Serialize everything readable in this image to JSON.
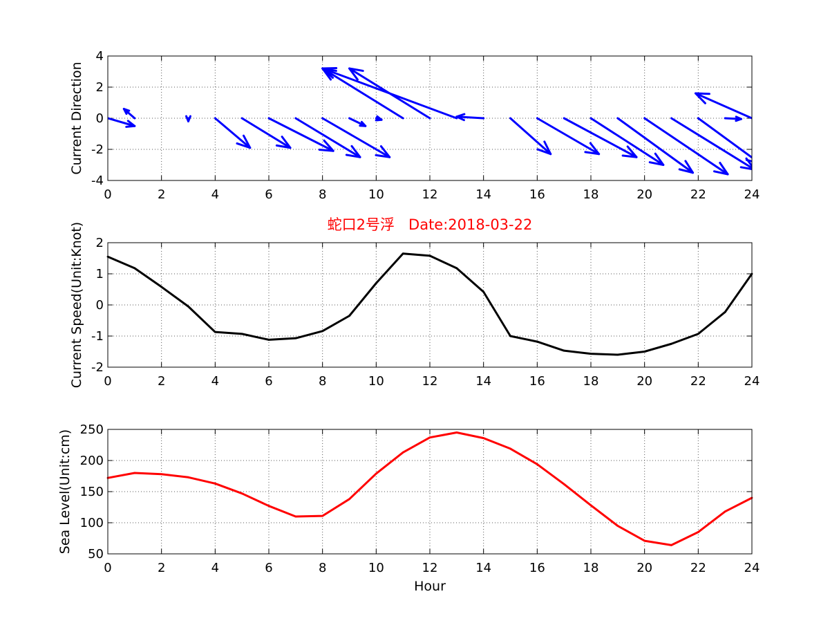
{
  "figure_title": "蛇口2号浮   Date:2018-03-22",
  "colors": {
    "title": "#ff0000",
    "quiver": "#0000ff",
    "speed_line": "#000000",
    "level_line": "#ff0000"
  },
  "chart_data": [
    {
      "type": "quiver",
      "ylabel": "Current Direction",
      "xlabel": "",
      "xlim": [
        0,
        24
      ],
      "ylim": [
        -4,
        4
      ],
      "xticks": [
        0,
        2,
        4,
        6,
        8,
        10,
        12,
        14,
        16,
        18,
        20,
        22,
        24
      ],
      "yticks": [
        -4,
        -2,
        0,
        2,
        4
      ],
      "grid": true,
      "arrows": [
        {
          "x": 0,
          "u": 1.0,
          "v": -0.5
        },
        {
          "x": 1,
          "u": -0.4,
          "v": 0.6
        },
        {
          "x": 3,
          "u": 0.0,
          "v": -0.2
        },
        {
          "x": 4,
          "u": 1.3,
          "v": -1.9
        },
        {
          "x": 5,
          "u": 1.8,
          "v": -1.9
        },
        {
          "x": 6,
          "u": 2.4,
          "v": -2.1
        },
        {
          "x": 7,
          "u": 2.4,
          "v": -2.5
        },
        {
          "x": 8,
          "u": 2.5,
          "v": -2.5
        },
        {
          "x": 9,
          "u": 0.6,
          "v": -0.5
        },
        {
          "x": 10,
          "u": 0.2,
          "v": -0.1
        },
        {
          "x": 11,
          "u": -3.0,
          "v": 3.2
        },
        {
          "x": 12,
          "u": -3.0,
          "v": 3.2
        },
        {
          "x": 13,
          "u": -5.0,
          "v": 3.2
        },
        {
          "x": 14,
          "u": -1.0,
          "v": 0.1
        },
        {
          "x": 15,
          "u": 1.5,
          "v": -2.3
        },
        {
          "x": 16,
          "u": 2.3,
          "v": -2.3
        },
        {
          "x": 17,
          "u": 2.7,
          "v": -2.5
        },
        {
          "x": 18,
          "u": 2.7,
          "v": -3.0
        },
        {
          "x": 19,
          "u": 2.8,
          "v": -3.5
        },
        {
          "x": 20,
          "u": 3.1,
          "v": -3.6
        },
        {
          "x": 21,
          "u": 3.1,
          "v": -3.3
        },
        {
          "x": 22,
          "u": 2.3,
          "v": -2.9
        },
        {
          "x": 23,
          "u": 0.6,
          "v": -0.05
        },
        {
          "x": 24,
          "u": -2.1,
          "v": 1.6
        }
      ]
    },
    {
      "type": "line",
      "ylabel": "Current Speed(Unit:Knot)",
      "xlabel": "",
      "xlim": [
        0,
        24
      ],
      "ylim": [
        -2,
        2
      ],
      "xticks": [
        0,
        2,
        4,
        6,
        8,
        10,
        12,
        14,
        16,
        18,
        20,
        22,
        24
      ],
      "yticks": [
        -2,
        -1,
        0,
        1,
        2
      ],
      "grid": true,
      "x": [
        0,
        1,
        2,
        3,
        4,
        5,
        6,
        7,
        8,
        9,
        10,
        11,
        12,
        13,
        14,
        15,
        16,
        17,
        18,
        19,
        20,
        21,
        22,
        23,
        24
      ],
      "y": [
        1.55,
        1.18,
        0.58,
        -0.05,
        -0.87,
        -0.93,
        -1.12,
        -1.07,
        -0.84,
        -0.35,
        0.7,
        1.65,
        1.58,
        1.18,
        0.42,
        -1.0,
        -1.18,
        -1.47,
        -1.57,
        -1.6,
        -1.5,
        -1.25,
        -0.93,
        -0.23,
        1.0
      ]
    },
    {
      "type": "line",
      "ylabel": "Sea Level(Unit:cm)",
      "xlabel": "Hour",
      "xlim": [
        0,
        24
      ],
      "ylim": [
        50,
        250
      ],
      "xticks": [
        0,
        2,
        4,
        6,
        8,
        10,
        12,
        14,
        16,
        18,
        20,
        22,
        24
      ],
      "yticks": [
        50,
        100,
        150,
        200,
        250
      ],
      "grid": true,
      "x": [
        0,
        1,
        2,
        3,
        4,
        5,
        6,
        7,
        8,
        9,
        10,
        11,
        12,
        13,
        14,
        15,
        16,
        17,
        18,
        19,
        20,
        21,
        22,
        23,
        24
      ],
      "y": [
        172,
        180,
        178,
        173,
        163,
        147,
        127,
        110,
        111,
        138,
        179,
        213,
        237,
        245,
        236,
        219,
        194,
        162,
        128,
        95,
        71,
        64,
        85,
        118,
        140
      ]
    }
  ]
}
